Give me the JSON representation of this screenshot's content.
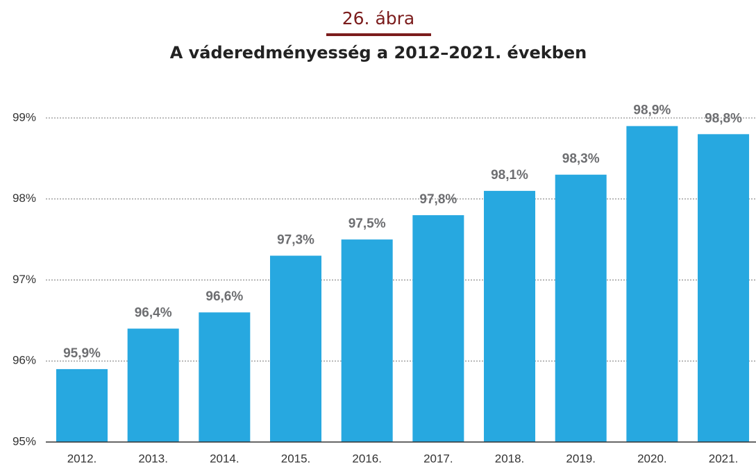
{
  "chart_data": {
    "type": "bar",
    "subtitle": "26. ábra",
    "title": "A váderedményesség a 2012–2021. években",
    "categories": [
      "2012.",
      "2013.",
      "2014.",
      "2015.",
      "2016.",
      "2017.",
      "2018.",
      "2019.",
      "2020.",
      "2021."
    ],
    "values": [
      95.9,
      96.4,
      96.6,
      97.3,
      97.5,
      97.8,
      98.1,
      98.3,
      98.9,
      98.8
    ],
    "value_labels": [
      "95,9%",
      "96,4%",
      "96,6%",
      "97,3%",
      "97,5%",
      "97,8%",
      "98,1%",
      "98,3%",
      "98,9%",
      "98,8%"
    ],
    "color": "#27a8e0",
    "ylim": [
      95,
      99
    ],
    "yticks": [
      {
        "value": 95,
        "label": "95%"
      },
      {
        "value": 96,
        "label": "96%"
      },
      {
        "value": 97,
        "label": "97%"
      },
      {
        "value": 98,
        "label": "98%"
      },
      {
        "value": 99,
        "label": "99%"
      }
    ],
    "grid": true
  }
}
